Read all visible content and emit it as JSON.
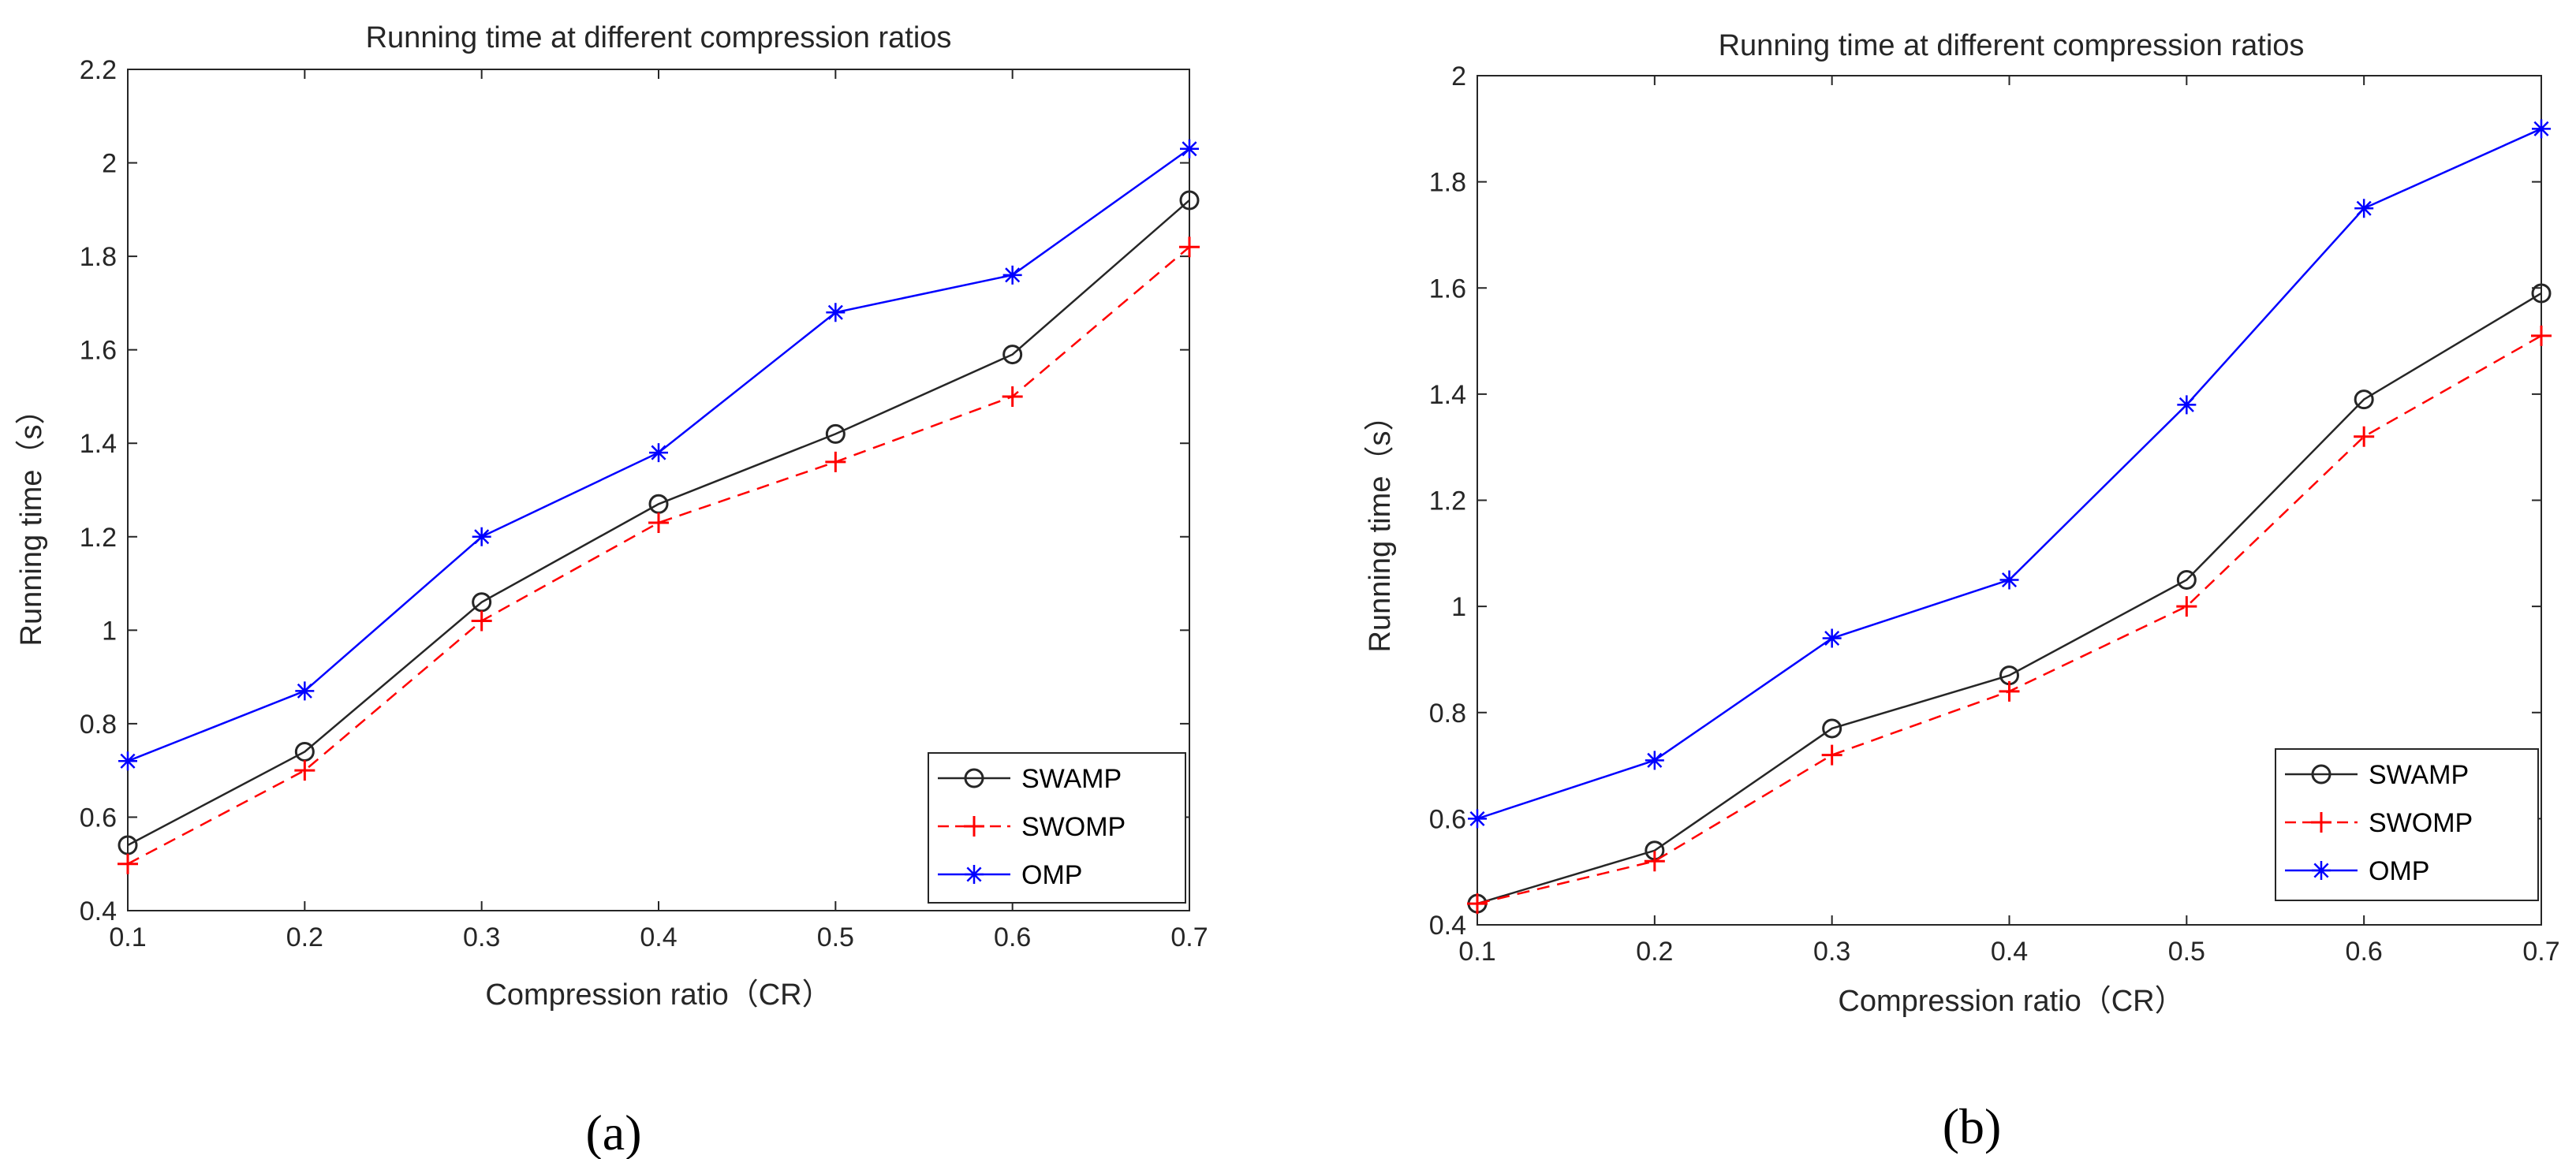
{
  "chart_data": [
    {
      "type": "line",
      "panel_label": "(a)",
      "title": "Running time at different compression ratios",
      "xlabel": "Compression ratio（CR）",
      "ylabel": "Running time（s）",
      "x": [
        0.1,
        0.2,
        0.3,
        0.4,
        0.5,
        0.6,
        0.7
      ],
      "xlim": [
        0.1,
        0.7
      ],
      "ylim": [
        0.4,
        2.2
      ],
      "xticks": [
        0.1,
        0.2,
        0.3,
        0.4,
        0.5,
        0.6,
        0.7
      ],
      "yticks": [
        0.4,
        0.6,
        0.8,
        1,
        1.2,
        1.4,
        1.6,
        1.8,
        2,
        2.2
      ],
      "xtick_labels": [
        "0.1",
        "0.2",
        "0.3",
        "0.4",
        "0.5",
        "0.6",
        "0.7"
      ],
      "ytick_labels": [
        "0.4",
        "0.6",
        "0.8",
        "1",
        "1.2",
        "1.4",
        "1.6",
        "1.8",
        "2",
        "2.2"
      ],
      "grid": false,
      "legend_position": "bottom-right",
      "series": [
        {
          "name": "SWAMP",
          "values": [
            0.54,
            0.74,
            1.06,
            1.27,
            1.42,
            1.59,
            1.92
          ],
          "color": "#262626",
          "marker": "circle",
          "dash": "solid"
        },
        {
          "name": "SWOMP",
          "values": [
            0.5,
            0.7,
            1.02,
            1.23,
            1.36,
            1.5,
            1.82
          ],
          "color": "#ff0000",
          "marker": "plus",
          "dash": "dashed"
        },
        {
          "name": "OMP",
          "values": [
            0.72,
            0.87,
            1.2,
            1.38,
            1.68,
            1.76,
            2.03
          ],
          "color": "#0000ff",
          "marker": "asterisk",
          "dash": "solid"
        }
      ]
    },
    {
      "type": "line",
      "panel_label": "(b)",
      "title": "Running time at different compression ratios",
      "xlabel": "Compression ratio（CR）",
      "ylabel": "Running time（s）",
      "x": [
        0.1,
        0.2,
        0.3,
        0.4,
        0.5,
        0.6,
        0.7
      ],
      "xlim": [
        0.1,
        0.7
      ],
      "ylim": [
        0.4,
        2.0
      ],
      "xticks": [
        0.1,
        0.2,
        0.3,
        0.4,
        0.5,
        0.6,
        0.7
      ],
      "yticks": [
        0.4,
        0.6,
        0.8,
        1,
        1.2,
        1.4,
        1.6,
        1.8,
        2
      ],
      "xtick_labels": [
        "0.1",
        "0.2",
        "0.3",
        "0.4",
        "0.5",
        "0.6",
        "0.7"
      ],
      "ytick_labels": [
        "0.4",
        "0.6",
        "0.8",
        "1",
        "1.2",
        "1.4",
        "1.6",
        "1.8",
        "2"
      ],
      "grid": false,
      "legend_position": "bottom-right",
      "series": [
        {
          "name": "SWAMP",
          "values": [
            0.44,
            0.54,
            0.77,
            0.87,
            1.05,
            1.39,
            1.59
          ],
          "color": "#262626",
          "marker": "circle",
          "dash": "solid"
        },
        {
          "name": "SWOMP",
          "values": [
            0.44,
            0.52,
            0.72,
            0.84,
            1.0,
            1.32,
            1.51
          ],
          "color": "#ff0000",
          "marker": "plus",
          "dash": "dashed"
        },
        {
          "name": "OMP",
          "values": [
            0.6,
            0.71,
            0.94,
            1.05,
            1.38,
            1.75,
            1.9
          ],
          "color": "#0000ff",
          "marker": "asterisk",
          "dash": "solid"
        }
      ]
    }
  ]
}
